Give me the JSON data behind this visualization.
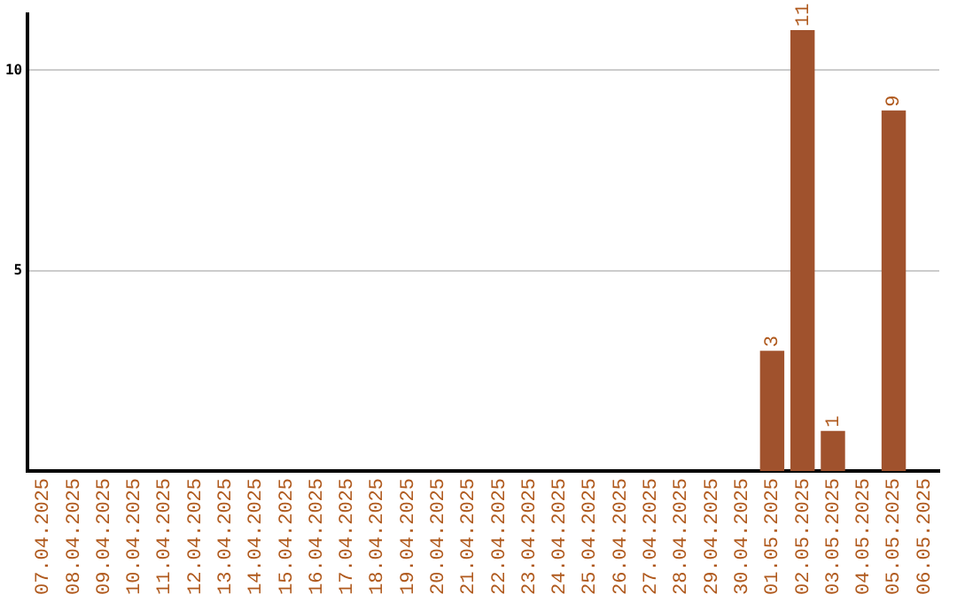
{
  "chart_data": {
    "type": "bar",
    "categories": [
      "07.04.2025",
      "08.04.2025",
      "09.04.2025",
      "10.04.2025",
      "11.04.2025",
      "12.04.2025",
      "13.04.2025",
      "14.04.2025",
      "15.04.2025",
      "16.04.2025",
      "17.04.2025",
      "18.04.2025",
      "19.04.2025",
      "20.04.2025",
      "21.04.2025",
      "22.04.2025",
      "23.04.2025",
      "24.04.2025",
      "25.04.2025",
      "26.04.2025",
      "27.04.2025",
      "28.04.2025",
      "29.04.2025",
      "30.04.2025",
      "01.05.2025",
      "02.05.2025",
      "03.05.2025",
      "04.05.2025",
      "05.05.2025",
      "06.05.2025"
    ],
    "values": [
      0,
      0,
      0,
      0,
      0,
      0,
      0,
      0,
      0,
      0,
      0,
      0,
      0,
      0,
      0,
      0,
      0,
      0,
      0,
      0,
      0,
      0,
      0,
      0,
      3,
      11,
      1,
      0,
      9,
      0
    ],
    "value_labels": [
      null,
      null,
      null,
      null,
      null,
      null,
      null,
      null,
      null,
      null,
      null,
      null,
      null,
      null,
      null,
      null,
      null,
      null,
      null,
      null,
      null,
      null,
      null,
      null,
      "3",
      "11",
      "1",
      null,
      "9",
      null
    ],
    "color": "#a0522d",
    "ylim": [
      0,
      11.4
    ],
    "yticks": [
      5,
      10
    ],
    "grid": "y",
    "legend": false
  }
}
